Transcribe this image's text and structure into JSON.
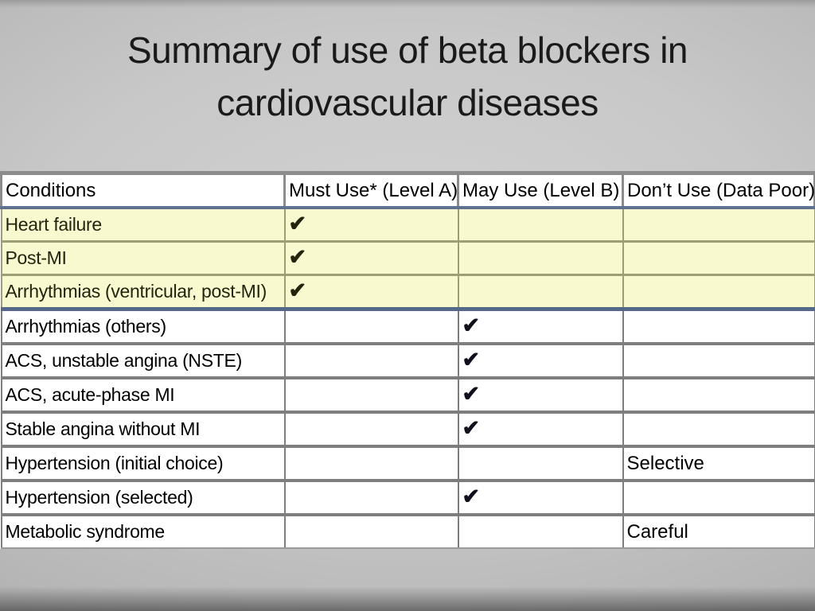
{
  "slide": {
    "title_line1": "Summary of use of beta blockers in",
    "title_line2": "cardiovascular diseases"
  },
  "theme": {
    "highlight_row_bg": "#f9f9d0",
    "highlight_block_border": "#5e7390",
    "highlight_inner_border": "#9e9e74",
    "plain_border": "#7e7e7e",
    "background_gray": "#c8c8c8"
  },
  "table": {
    "check_symbol": "✔",
    "columns": [
      "Conditions",
      "Must Use* (Level A)",
      "May Use (Level B)",
      "Don’t Use (Data Poor)"
    ],
    "rows": [
      {
        "highlight": true,
        "cells": [
          "Heart failure",
          "✔",
          "",
          ""
        ]
      },
      {
        "highlight": true,
        "cells": [
          "Post-MI",
          "✔",
          "",
          ""
        ]
      },
      {
        "highlight": true,
        "cells": [
          "Arrhythmias (ventricular, post-MI)",
          "✔",
          "",
          ""
        ]
      },
      {
        "highlight": false,
        "cells": [
          "Arrhythmias (others)",
          "",
          "✔",
          ""
        ]
      },
      {
        "highlight": false,
        "cells": [
          "ACS, unstable angina (NSTE)",
          "",
          "✔",
          ""
        ]
      },
      {
        "highlight": false,
        "cells": [
          "ACS, acute-phase MI",
          "",
          "✔",
          ""
        ]
      },
      {
        "highlight": false,
        "cells": [
          "Stable angina without MI",
          "",
          "✔",
          ""
        ]
      },
      {
        "highlight": false,
        "cells": [
          "Hypertension (initial choice)",
          "",
          "",
          "Selective"
        ]
      },
      {
        "highlight": false,
        "cells": [
          "Hypertension (selected)",
          "",
          "✔",
          ""
        ]
      },
      {
        "highlight": false,
        "cells": [
          "Metabolic syndrome",
          "",
          "",
          "Careful"
        ]
      }
    ]
  }
}
